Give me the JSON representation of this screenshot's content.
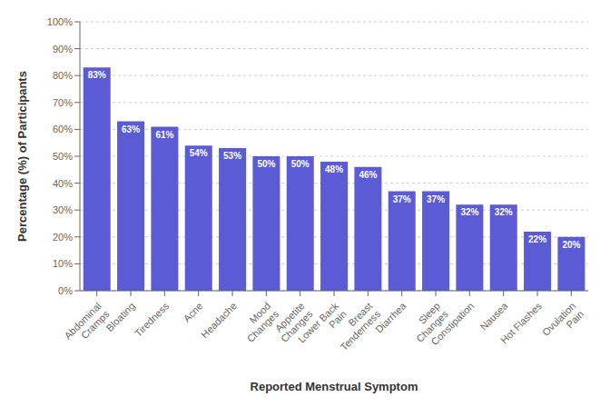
{
  "chart_data": {
    "type": "bar",
    "categories": [
      "Abdominal\nCramps",
      "Bloating",
      "Tiredness",
      "Acne",
      "Headache",
      "Mood\nChanges",
      "Appetite\nChanges",
      "Lower Back\nPain",
      "Breast\nTenderness",
      "Diarrhea",
      "Sleep\nChanges",
      "Constipation",
      "Nausea",
      "Hot Flashes",
      "Ovulation\nPain"
    ],
    "values": [
      83,
      63,
      61,
      54,
      53,
      50,
      50,
      48,
      46,
      37,
      37,
      32,
      32,
      22,
      20
    ],
    "value_labels": [
      "83%",
      "63%",
      "61%",
      "54%",
      "53%",
      "50%",
      "50%",
      "48%",
      "46%",
      "37%",
      "37%",
      "32%",
      "32%",
      "22%",
      "20%"
    ],
    "data_labels": true,
    "color": "#5B5BD6",
    "xlabel": "Reported Menstrual Symptom",
    "ylabel": "Percentage (%) of Participants",
    "ylim": [
      0,
      100
    ],
    "yticks": [
      {
        "value": 0,
        "label": "0%"
      },
      {
        "value": 10,
        "label": "10%"
      },
      {
        "value": 20,
        "label": "20%"
      },
      {
        "value": 30,
        "label": "30%"
      },
      {
        "value": 40,
        "label": "40%"
      },
      {
        "value": 50,
        "label": "50%"
      },
      {
        "value": 60,
        "label": "60%"
      },
      {
        "value": 70,
        "label": "70%"
      },
      {
        "value": 80,
        "label": "80%"
      },
      {
        "value": 90,
        "label": "90%"
      },
      {
        "value": 100,
        "label": "100%"
      }
    ],
    "grid": true
  }
}
